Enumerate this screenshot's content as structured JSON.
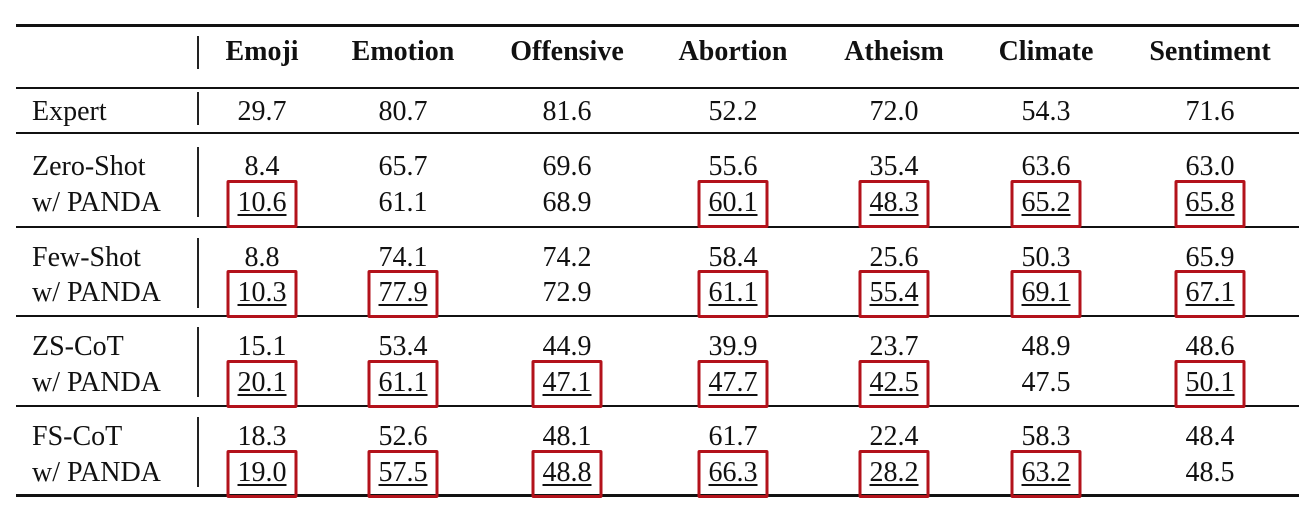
{
  "table": {
    "columns": [
      "Emoji",
      "Emotion",
      "Offensive",
      "Abortion",
      "Atheism",
      "Climate",
      "Sentiment"
    ],
    "groups": [
      {
        "rows": [
          {
            "label": "Expert",
            "cells": [
              {
                "v": "29.7"
              },
              {
                "v": "80.7"
              },
              {
                "v": "81.6"
              },
              {
                "v": "52.2"
              },
              {
                "v": "72.0"
              },
              {
                "v": "54.3"
              },
              {
                "v": "71.6"
              }
            ]
          }
        ]
      },
      {
        "rows": [
          {
            "label": "Zero-Shot",
            "cells": [
              {
                "v": "8.4"
              },
              {
                "v": "65.7"
              },
              {
                "v": "69.6"
              },
              {
                "v": "55.6"
              },
              {
                "v": "35.4"
              },
              {
                "v": "63.6"
              },
              {
                "v": "63.0"
              }
            ]
          },
          {
            "label": "w/ PANDA",
            "cells": [
              {
                "v": "10.6",
                "u": true,
                "b": true
              },
              {
                "v": "61.1"
              },
              {
                "v": "68.9"
              },
              {
                "v": "60.1",
                "u": true,
                "b": true
              },
              {
                "v": "48.3",
                "u": true,
                "b": true
              },
              {
                "v": "65.2",
                "u": true,
                "b": true
              },
              {
                "v": "65.8",
                "u": true,
                "b": true
              }
            ]
          }
        ]
      },
      {
        "rows": [
          {
            "label": "Few-Shot",
            "cells": [
              {
                "v": "8.8"
              },
              {
                "v": "74.1"
              },
              {
                "v": "74.2"
              },
              {
                "v": "58.4"
              },
              {
                "v": "25.6"
              },
              {
                "v": "50.3"
              },
              {
                "v": "65.9"
              }
            ]
          },
          {
            "label": "w/ PANDA",
            "cells": [
              {
                "v": "10.3",
                "u": true,
                "b": true
              },
              {
                "v": "77.9",
                "u": true,
                "b": true
              },
              {
                "v": "72.9"
              },
              {
                "v": "61.1",
                "u": true,
                "b": true
              },
              {
                "v": "55.4",
                "u": true,
                "b": true
              },
              {
                "v": "69.1",
                "u": true,
                "b": true
              },
              {
                "v": "67.1",
                "u": true,
                "b": true
              }
            ]
          }
        ]
      },
      {
        "rows": [
          {
            "label": "ZS-CoT",
            "cells": [
              {
                "v": "15.1"
              },
              {
                "v": "53.4"
              },
              {
                "v": "44.9"
              },
              {
                "v": "39.9"
              },
              {
                "v": "23.7"
              },
              {
                "v": "48.9"
              },
              {
                "v": "48.6"
              }
            ]
          },
          {
            "label": "w/ PANDA",
            "cells": [
              {
                "v": "20.1",
                "u": true,
                "b": true
              },
              {
                "v": "61.1",
                "u": true,
                "b": true
              },
              {
                "v": "47.1",
                "u": true,
                "b": true
              },
              {
                "v": "47.7",
                "u": true,
                "b": true
              },
              {
                "v": "42.5",
                "u": true,
                "b": true
              },
              {
                "v": "47.5"
              },
              {
                "v": "50.1",
                "u": true,
                "b": true
              }
            ]
          }
        ]
      },
      {
        "rows": [
          {
            "label": "FS-CoT",
            "cells": [
              {
                "v": "18.3"
              },
              {
                "v": "52.6"
              },
              {
                "v": "48.1"
              },
              {
                "v": "61.7"
              },
              {
                "v": "22.4"
              },
              {
                "v": "58.3"
              },
              {
                "v": "48.4"
              }
            ]
          },
          {
            "label": "w/ PANDA",
            "cells": [
              {
                "v": "19.0",
                "u": true,
                "b": true
              },
              {
                "v": "57.5",
                "u": true,
                "b": true
              },
              {
                "v": "48.8",
                "u": true,
                "b": true
              },
              {
                "v": "66.3",
                "u": true,
                "b": true
              },
              {
                "v": "28.2",
                "u": true,
                "b": true
              },
              {
                "v": "63.2",
                "u": true,
                "b": true
              },
              {
                "v": "48.5"
              }
            ]
          }
        ]
      }
    ],
    "highlight_color": "#b3121b"
  }
}
